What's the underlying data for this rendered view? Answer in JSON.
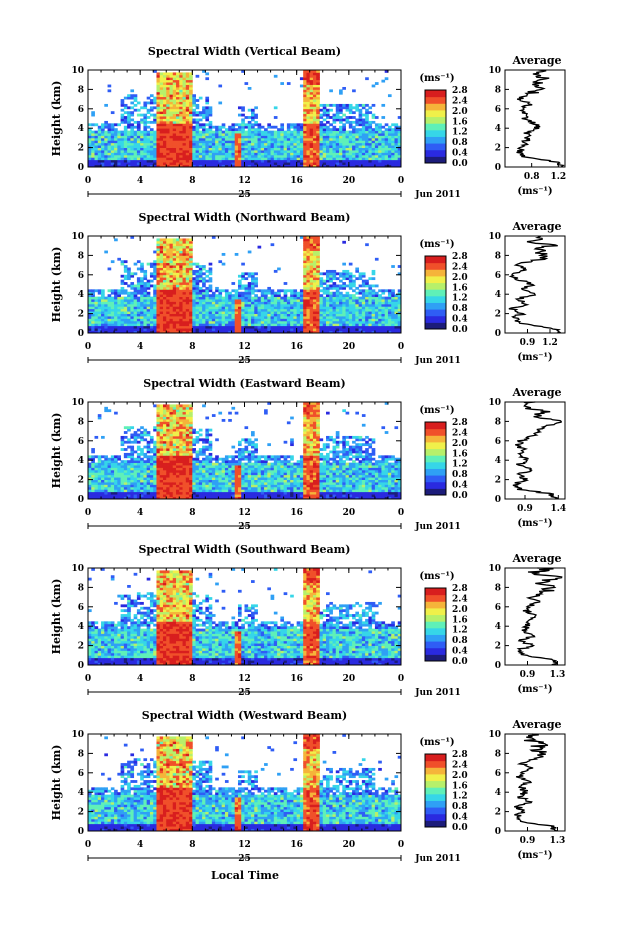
{
  "figure": {
    "xlabel": "Local Time",
    "date_label": "Jun 2011",
    "day_label": "25",
    "colorbar_unit": "(ms⁻¹)",
    "avg_title": "Average",
    "avg_xlabel": "(ms⁻¹)",
    "colormap": [
      "#1c1c7a",
      "#2a2ae0",
      "#2f5df5",
      "#2fa0f5",
      "#36d6e8",
      "#5ff0b8",
      "#b7f06a",
      "#f0f04a",
      "#f5b43a",
      "#f0502a",
      "#d81e1e"
    ]
  },
  "chart_data": [
    {
      "type": "heatmap",
      "title": "Spectral Width (Vertical Beam)",
      "ylabel": "Height (km)",
      "x_ticks": [
        "0",
        "4",
        "8",
        "12",
        "16",
        "20",
        "0"
      ],
      "y_ticks": [
        "0",
        "2",
        "4",
        "6",
        "8",
        "10"
      ],
      "xlim": [
        0,
        24
      ],
      "ylim": [
        0,
        10
      ],
      "colorbar_ticks": [
        "0.0",
        "0.4",
        "0.8",
        "1.2",
        "1.6",
        "2.0",
        "2.4",
        "2.8"
      ],
      "avg_profile": {
        "xlim": [
          0.4,
          1.3
        ],
        "x_ticks": [
          "0.8",
          "1.2"
        ],
        "heights": [
          0,
          0.5,
          1,
          1.5,
          2,
          2.5,
          3,
          3.5,
          4,
          4.5,
          5,
          5.5,
          6,
          6.5,
          7,
          7.5,
          8,
          8.5,
          9,
          9.5,
          10
        ],
        "values": [
          1.25,
          1.2,
          0.7,
          0.62,
          0.66,
          0.7,
          0.75,
          0.72,
          0.9,
          0.85,
          0.68,
          0.72,
          0.64,
          0.78,
          0.6,
          0.72,
          0.95,
          0.8,
          1.05,
          0.9,
          1.0
        ]
      }
    },
    {
      "type": "heatmap",
      "title": "Spectral Width (Northward Beam)",
      "ylabel": "Height (km)",
      "x_ticks": [
        "0",
        "4",
        "8",
        "12",
        "16",
        "20",
        "0"
      ],
      "y_ticks": [
        "0",
        "2",
        "4",
        "6",
        "8",
        "10"
      ],
      "xlim": [
        0,
        24
      ],
      "ylim": [
        0,
        10
      ],
      "colorbar_ticks": [
        "0.0",
        "0.4",
        "0.8",
        "1.2",
        "1.6",
        "2.0",
        "2.4",
        "2.8"
      ],
      "avg_profile": {
        "xlim": [
          0.6,
          1.4
        ],
        "x_ticks": [
          "0.9",
          "1.2"
        ],
        "heights": [
          0,
          0.5,
          1,
          1.5,
          2,
          2.5,
          3,
          3.5,
          4,
          4.5,
          5,
          5.5,
          6,
          6.5,
          7,
          7.5,
          8,
          8.5,
          9,
          9.5,
          10
        ],
        "values": [
          1.3,
          1.25,
          0.8,
          0.72,
          0.82,
          0.7,
          0.9,
          0.76,
          1.0,
          0.85,
          0.95,
          0.8,
          0.7,
          0.9,
          0.75,
          1.0,
          1.15,
          1.05,
          1.2,
          0.95,
          1.1
        ]
      }
    },
    {
      "type": "heatmap",
      "title": "Spectral Width (Eastward Beam)",
      "ylabel": "Height (km)",
      "x_ticks": [
        "0",
        "4",
        "8",
        "12",
        "16",
        "20",
        "0"
      ],
      "y_ticks": [
        "0",
        "2",
        "4",
        "6",
        "8",
        "10"
      ],
      "xlim": [
        0,
        24
      ],
      "ylim": [
        0,
        10
      ],
      "colorbar_ticks": [
        "0.0",
        "0.4",
        "0.8",
        "1.2",
        "1.6",
        "2.0",
        "2.4",
        "2.8"
      ],
      "avg_profile": {
        "xlim": [
          0.6,
          1.5
        ],
        "x_ticks": [
          "0.9",
          "1.4"
        ],
        "heights": [
          0,
          0.5,
          1,
          1.5,
          2,
          2.5,
          3,
          3.5,
          4,
          4.5,
          5,
          5.5,
          6,
          6.5,
          7,
          7.5,
          8,
          8.5,
          9,
          9.5,
          10
        ],
        "values": [
          1.35,
          1.3,
          0.82,
          0.75,
          0.9,
          0.8,
          1.0,
          0.78,
          0.95,
          0.82,
          0.9,
          0.8,
          0.85,
          1.0,
          1.1,
          1.2,
          1.35,
          1.1,
          1.2,
          0.9,
          1.0
        ]
      }
    },
    {
      "type": "heatmap",
      "title": "Spectral Width (Southward Beam)",
      "ylabel": "Height (km)",
      "x_ticks": [
        "0",
        "4",
        "8",
        "12",
        "16",
        "20",
        "0"
      ],
      "y_ticks": [
        "0",
        "2",
        "4",
        "6",
        "8",
        "10"
      ],
      "xlim": [
        0,
        24
      ],
      "ylim": [
        0,
        10
      ],
      "colorbar_ticks": [
        "0.0",
        "0.4",
        "0.8",
        "1.2",
        "1.6",
        "2.0",
        "2.4",
        "2.8"
      ],
      "avg_profile": {
        "xlim": [
          0.6,
          1.4
        ],
        "x_ticks": [
          "0.9",
          "1.3"
        ],
        "heights": [
          0,
          0.5,
          1,
          1.5,
          2,
          2.5,
          3,
          3.5,
          4,
          4.5,
          5,
          5.5,
          6,
          6.5,
          7,
          7.5,
          8,
          8.5,
          9,
          9.5,
          10
        ],
        "values": [
          1.3,
          1.25,
          0.85,
          0.78,
          0.95,
          0.8,
          1.0,
          0.82,
          0.9,
          0.85,
          1.0,
          0.9,
          0.88,
          1.05,
          0.95,
          1.15,
          1.25,
          1.1,
          1.3,
          1.0,
          1.15
        ]
      }
    },
    {
      "type": "heatmap",
      "title": "Spectral Width (Westward Beam)",
      "ylabel": "Height (km)",
      "x_ticks": [
        "0",
        "4",
        "8",
        "12",
        "16",
        "20",
        "0"
      ],
      "y_ticks": [
        "0",
        "2",
        "4",
        "6",
        "8",
        "10"
      ],
      "xlim": [
        0,
        24
      ],
      "ylim": [
        0,
        10
      ],
      "colorbar_ticks": [
        "0.0",
        "0.4",
        "0.8",
        "1.2",
        "1.6",
        "2.0",
        "2.4",
        "2.8"
      ],
      "avg_profile": {
        "xlim": [
          0.6,
          1.4
        ],
        "x_ticks": [
          "0.9",
          "1.3"
        ],
        "heights": [
          0,
          0.5,
          1,
          1.5,
          2,
          2.5,
          3,
          3.5,
          4,
          4.5,
          5,
          5.5,
          6,
          6.5,
          7,
          7.5,
          8,
          8.5,
          9,
          9.5,
          10
        ],
        "values": [
          1.3,
          1.2,
          0.8,
          0.75,
          0.85,
          0.78,
          0.95,
          0.8,
          0.88,
          0.82,
          0.9,
          0.8,
          0.85,
          0.95,
          0.8,
          1.0,
          1.15,
          1.0,
          1.1,
          0.9,
          1.0
        ]
      }
    }
  ]
}
